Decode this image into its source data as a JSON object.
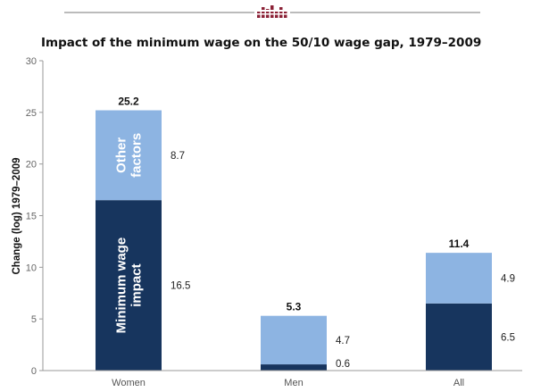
{
  "logo": {
    "icon": "bar-cluster-logo-icon",
    "color": "#8b2136"
  },
  "colors": {
    "minimum_wage": "#17355e",
    "other": "#8db4e2",
    "axis": "#999999",
    "rule": "#777777"
  },
  "chart_data": {
    "type": "bar",
    "stacked": true,
    "title": "Impact of the minimum wage on the 50/10 wage gap, 1979–2009",
    "xlabel": "",
    "ylabel": "Change (log) 1979–2009",
    "ylim": [
      0,
      30
    ],
    "yticks": [
      0,
      5,
      10,
      15,
      20,
      25,
      30
    ],
    "grid": false,
    "legend": "none",
    "categories": [
      "Women",
      "Men",
      "All"
    ],
    "series": [
      {
        "key": "minimum_wage",
        "values": [
          16.5,
          0.6,
          6.5
        ],
        "labels": [
          "16.5",
          "0.6",
          "6.5"
        ],
        "inbar_label": [
          "Minimum wage",
          "impact"
        ]
      },
      {
        "key": "other",
        "values": [
          8.7,
          4.7,
          4.9
        ],
        "labels": [
          "8.7",
          "4.7",
          "4.9"
        ],
        "inbar_label": [
          "Other",
          "factors"
        ]
      }
    ],
    "totals": [
      25.2,
      5.3,
      11.4
    ],
    "total_labels": [
      "25.2",
      "5.3",
      "11.4"
    ]
  }
}
